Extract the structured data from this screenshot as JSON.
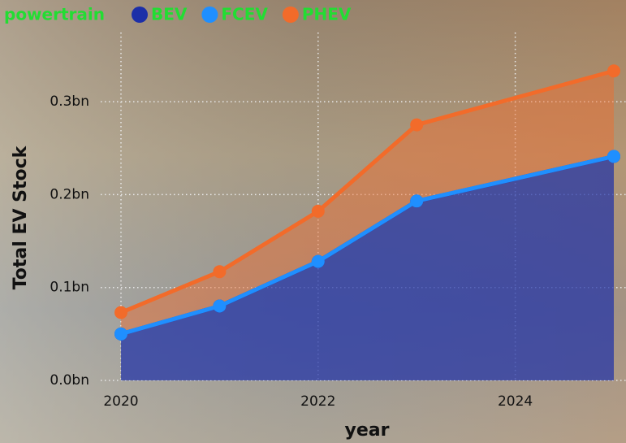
{
  "chart_data": {
    "type": "stacked-area",
    "legend_title": "powertrain",
    "y_label": "Total EV Stock",
    "x_label": "year",
    "x": [
      2020,
      2021,
      2022,
      2023,
      2025
    ],
    "series": [
      {
        "name": "BEV",
        "color": "#1c2fa8",
        "values": [
          0.05,
          0.08,
          0.128,
          0.193,
          0.241
        ]
      },
      {
        "name": "FCEV",
        "color": "#1f8fff",
        "values": [
          3e-05,
          5e-05,
          7e-05,
          7e-05,
          0.0001
        ]
      },
      {
        "name": "PHEV",
        "color": "#f26b2a",
        "values": [
          0.023,
          0.037,
          0.054,
          0.082,
          0.092
        ]
      }
    ],
    "xlim": [
      2020,
      2025
    ],
    "ylim": [
      0,
      0.36
    ],
    "xticks": [
      2020,
      2022,
      2024
    ],
    "yticks": [
      {
        "value": 0,
        "label": "0.0bn"
      },
      {
        "value": 0.1,
        "label": "0.1bn"
      },
      {
        "value": 0.2,
        "label": "0.2bn"
      },
      {
        "value": 0.3,
        "label": "0.3bn"
      }
    ],
    "grid": true
  }
}
